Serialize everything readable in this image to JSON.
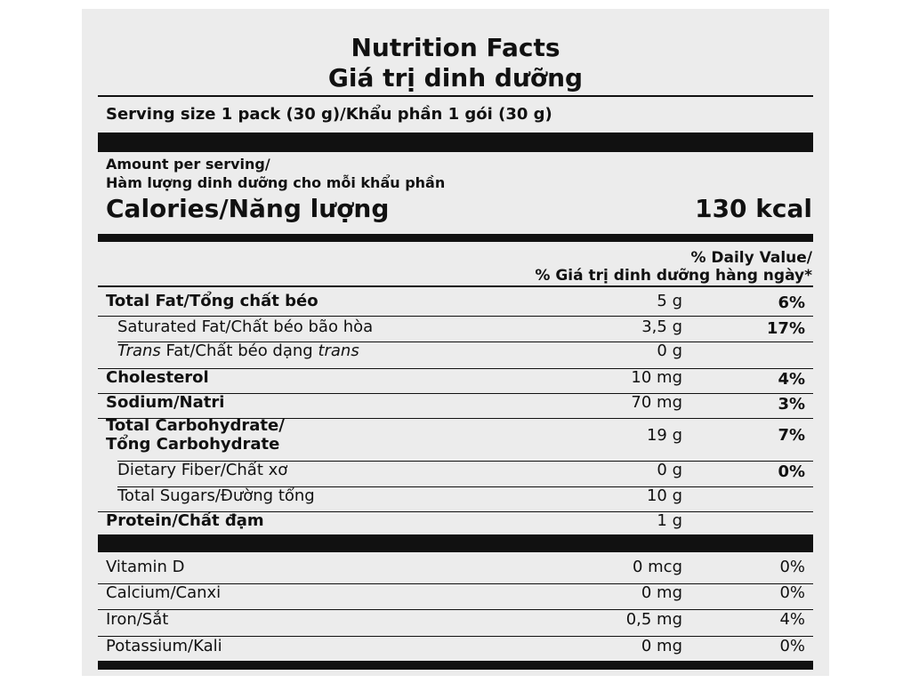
{
  "title_en": "Nutrition Facts",
  "title_vi": "Giá trị dinh dưỡng",
  "serving_size": "Serving size 1 pack (30 g)/Khẩu phần 1 gói (30 g)",
  "amount_per_serving_en": "Amount per serving/",
  "amount_per_serving_vi": "Hàm lượng dinh dưỡng cho mỗi khẩu phần",
  "calories_label": "Calories/Năng lượng",
  "calories_value": "130 kcal",
  "dv_header_1": "% Daily Value/",
  "dv_header_2": "% Giá trị dinh dưỡng hàng ngày*",
  "nutrients": {
    "total_fat": {
      "label": "Total Fat/Tổng chất béo",
      "amount": "5 g",
      "dv": "6%"
    },
    "sat_fat": {
      "label": "Saturated Fat/Chất béo bão hòa",
      "amount": "3,5 g",
      "dv": "17%"
    },
    "trans_fat": {
      "label_italic_1": "Trans",
      "label_mid": " Fat/Chất béo dạng ",
      "label_italic_2": "trans",
      "amount": "0 g",
      "dv": ""
    },
    "cholesterol": {
      "label": "Cholesterol",
      "amount": "10 mg",
      "dv": "4%"
    },
    "sodium": {
      "label": "Sodium/Natri",
      "amount": "70 mg",
      "dv": "3%"
    },
    "total_carb": {
      "label_1": "Total Carbohydrate/",
      "label_2": "Tổng Carbohydrate",
      "amount": "19 g",
      "dv": "7%"
    },
    "fiber": {
      "label": "Dietary Fiber/Chất xơ",
      "amount": "0 g",
      "dv": "0%"
    },
    "sugars": {
      "label": "Total Sugars/Đường tổng",
      "amount": "10 g",
      "dv": ""
    },
    "protein": {
      "label": "Protein/Chất đạm",
      "amount": "1 g",
      "dv": ""
    }
  },
  "vitamins": {
    "vit_d": {
      "label": "Vitamin D",
      "amount": "0 mcg",
      "dv": "0%"
    },
    "calcium": {
      "label": "Calcium/Canxi",
      "amount": "0 mg",
      "dv": "0%"
    },
    "iron": {
      "label": "Iron/Sắt",
      "amount": "0,5 mg",
      "dv": "4%"
    },
    "potassium": {
      "label": "Potassium/Kali",
      "amount": "0 mg",
      "dv": "0%"
    }
  }
}
